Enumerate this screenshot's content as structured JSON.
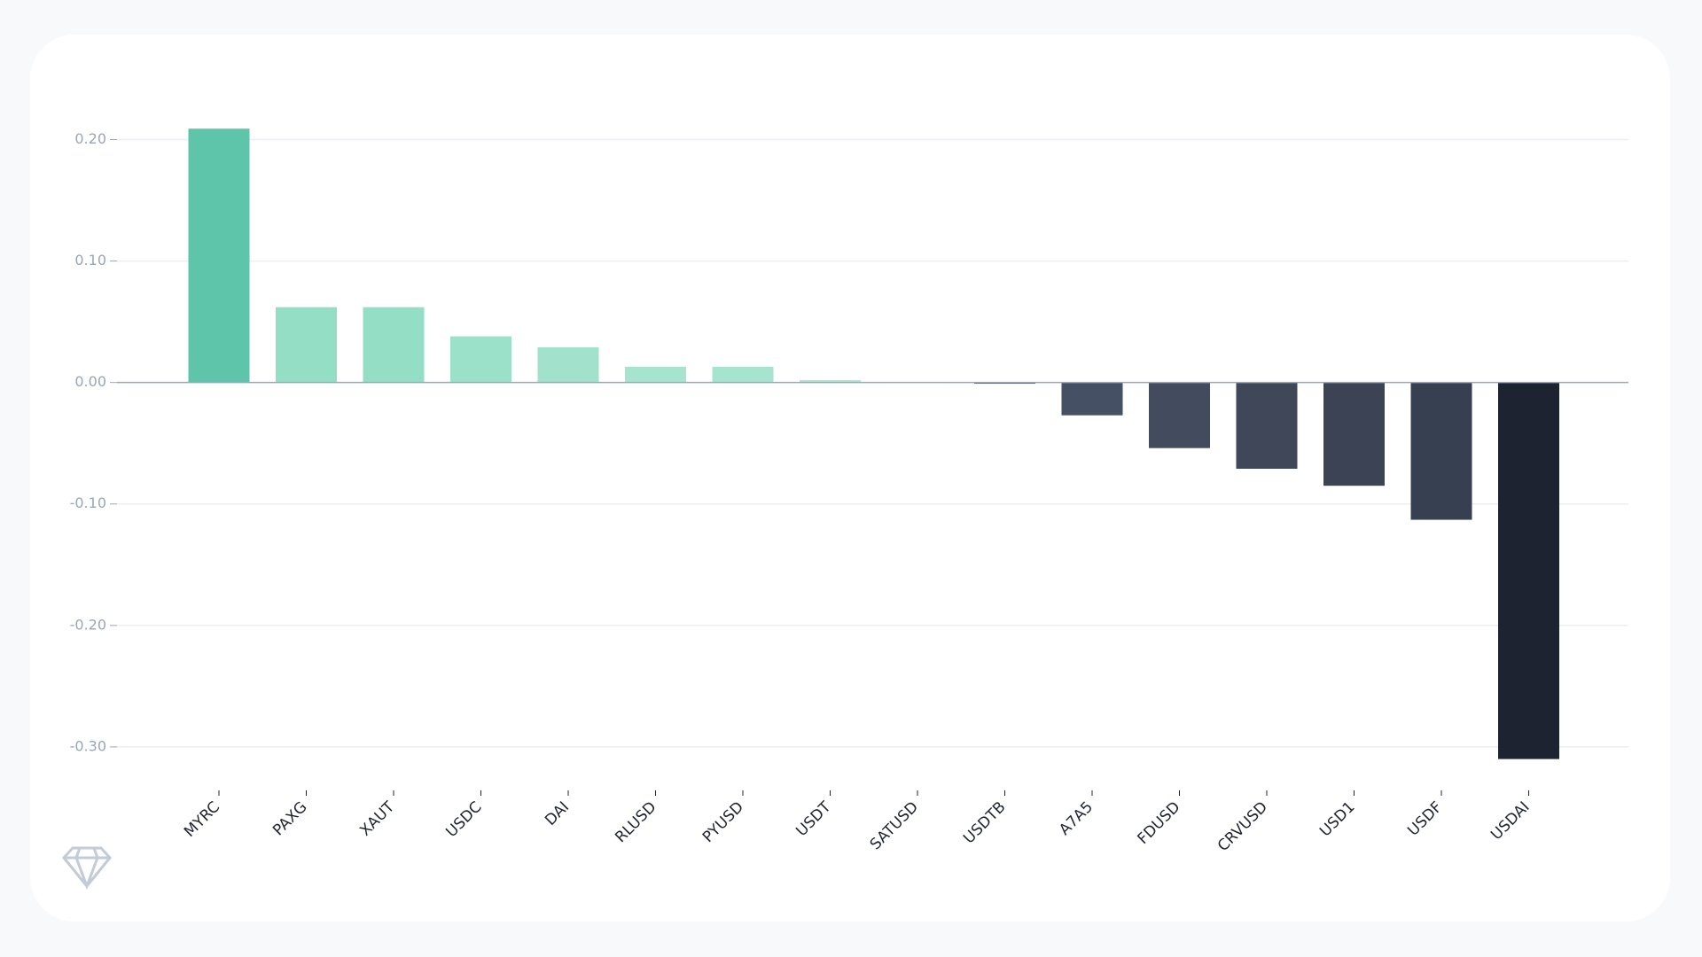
{
  "chart_data": {
    "type": "bar",
    "categories": [
      "MYRC",
      "PAXG",
      "XAUT",
      "USDC",
      "DAI",
      "RLUSD",
      "PYUSD",
      "USDT",
      "SATUSD",
      "USDTB",
      "A7A5",
      "FDUSD",
      "CRVUSD",
      "USD1",
      "USDF",
      "USDAI"
    ],
    "values": [
      0.209,
      0.062,
      0.062,
      0.038,
      0.029,
      0.013,
      0.013,
      0.002,
      0,
      -0.001,
      -0.027,
      -0.054,
      -0.071,
      -0.085,
      -0.113,
      -0.31
    ],
    "colors": [
      "#5ec4aa",
      "#93dec4",
      "#93dec4",
      "#9be0c8",
      "#a2e2cc",
      "#a7e4cf",
      "#a7e4cf",
      "#aee6d2",
      "#b0e8d4",
      "#4a5568",
      "#465064",
      "#434b5e",
      "#3f4758",
      "#3b4355",
      "#364050",
      "#1d2330"
    ],
    "ylim": [
      -0.33,
      0.25
    ],
    "yticks": [
      {
        "value": 0.2,
        "label": "0.20"
      },
      {
        "value": 0.1,
        "label": "0.10"
      },
      {
        "value": 0,
        "label": "0.00"
      },
      {
        "value": -0.1,
        "label": "-0.10"
      },
      {
        "value": -0.2,
        "label": "-0.20"
      },
      {
        "value": -0.3,
        "label": "-0.30"
      }
    ],
    "grid": true
  }
}
